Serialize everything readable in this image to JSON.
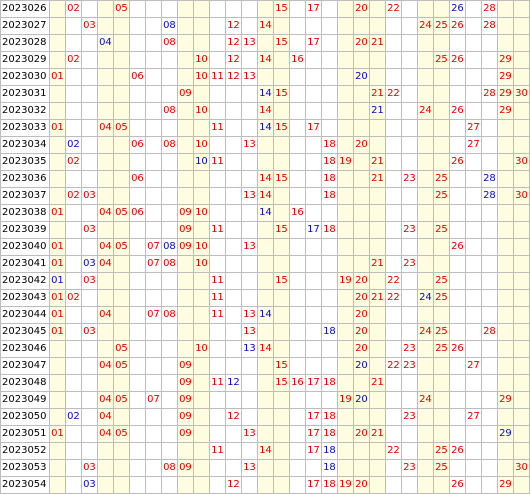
{
  "colors": {
    "red": "#e00000",
    "blue": "#0a0ab4",
    "shade": "#fefde0",
    "border": "#bdbdbd"
  },
  "columns": [
    1,
    2,
    3,
    4,
    5,
    6,
    7,
    8,
    9,
    10,
    11,
    12,
    13,
    14,
    15,
    16,
    17,
    18,
    19,
    20,
    21,
    22,
    23,
    24,
    25,
    26,
    27,
    28,
    29,
    30
  ],
  "shaded_columns": [
    1,
    4,
    5,
    9,
    10,
    14,
    15,
    19,
    20,
    21,
    24,
    25,
    29,
    30
  ],
  "rows": [
    {
      "issue": "2023026",
      "red": [
        2,
        5,
        15,
        17,
        20,
        22,
        28
      ],
      "blue": [
        26
      ]
    },
    {
      "issue": "2023027",
      "red": [
        3,
        12,
        14,
        24,
        25,
        26,
        28
      ],
      "blue": [
        8
      ]
    },
    {
      "issue": "2023028",
      "red": [
        8,
        12,
        13,
        15,
        17,
        20,
        21
      ],
      "blue": [
        4
      ]
    },
    {
      "issue": "2023029",
      "red": [
        2,
        10,
        12,
        14,
        16,
        25,
        26,
        29
      ],
      "blue": []
    },
    {
      "issue": "2023030",
      "red": [
        1,
        6,
        10,
        11,
        12,
        13,
        29
      ],
      "blue": [
        20
      ]
    },
    {
      "issue": "2023031",
      "red": [
        9,
        15,
        21,
        22,
        28,
        29,
        30
      ],
      "blue": [
        14
      ]
    },
    {
      "issue": "2023032",
      "red": [
        8,
        10,
        14,
        24,
        26,
        29
      ],
      "blue": [
        21
      ]
    },
    {
      "issue": "2023033",
      "red": [
        1,
        4,
        5,
        11,
        15,
        17,
        27
      ],
      "blue": [
        14
      ]
    },
    {
      "issue": "2023034",
      "red": [
        6,
        8,
        10,
        13,
        18,
        20,
        27
      ],
      "blue": [
        2
      ]
    },
    {
      "issue": "2023035",
      "red": [
        2,
        11,
        18,
        19,
        21,
        26,
        30
      ],
      "blue": [
        10
      ]
    },
    {
      "issue": "2023036",
      "red": [
        6,
        14,
        15,
        18,
        21,
        23,
        25
      ],
      "blue": [
        28
      ]
    },
    {
      "issue": "2023037",
      "red": [
        2,
        3,
        13,
        14,
        18,
        25,
        30
      ],
      "blue": [
        28
      ]
    },
    {
      "issue": "2023038",
      "red": [
        1,
        4,
        5,
        6,
        9,
        10,
        16
      ],
      "blue": [
        14
      ]
    },
    {
      "issue": "2023039",
      "red": [
        3,
        9,
        11,
        15,
        18,
        23,
        25
      ],
      "blue": [
        17
      ]
    },
    {
      "issue": "2023040",
      "red": [
        1,
        4,
        5,
        7,
        9,
        10,
        13,
        26
      ],
      "blue": [
        8
      ]
    },
    {
      "issue": "2023041",
      "red": [
        1,
        4,
        7,
        8,
        10,
        21,
        23
      ],
      "blue": [
        3
      ]
    },
    {
      "issue": "2023042",
      "red": [
        3,
        11,
        15,
        19,
        20,
        22,
        25
      ],
      "blue": [
        1
      ]
    },
    {
      "issue": "2023043",
      "red": [
        1,
        2,
        11,
        20,
        21,
        22,
        25
      ],
      "blue": [
        24
      ]
    },
    {
      "issue": "2023044",
      "red": [
        1,
        4,
        7,
        8,
        11,
        13,
        20
      ],
      "blue": [
        14
      ]
    },
    {
      "issue": "2023045",
      "red": [
        1,
        3,
        13,
        20,
        24,
        25,
        28
      ],
      "blue": [
        18
      ]
    },
    {
      "issue": "2023046",
      "red": [
        5,
        10,
        14,
        20,
        23,
        25,
        26
      ],
      "blue": [
        13
      ]
    },
    {
      "issue": "2023047",
      "red": [
        4,
        5,
        9,
        15,
        22,
        23,
        27
      ],
      "blue": [
        20
      ]
    },
    {
      "issue": "2023048",
      "red": [
        9,
        11,
        15,
        16,
        17,
        18,
        21
      ],
      "blue": [
        12
      ]
    },
    {
      "issue": "2023049",
      "red": [
        4,
        5,
        7,
        9,
        19,
        24,
        29
      ],
      "blue": [
        20
      ]
    },
    {
      "issue": "2023050",
      "red": [
        4,
        9,
        12,
        17,
        18,
        23,
        27
      ],
      "blue": [
        2
      ]
    },
    {
      "issue": "2023051",
      "red": [
        1,
        4,
        5,
        9,
        13,
        17,
        18,
        20,
        21
      ],
      "blue": [
        29
      ]
    },
    {
      "issue": "2023052",
      "red": [
        11,
        14,
        17,
        22,
        25,
        26
      ],
      "blue": [
        18
      ]
    },
    {
      "issue": "2023053",
      "red": [
        3,
        8,
        9,
        13,
        23,
        25,
        30
      ],
      "blue": [
        18
      ]
    },
    {
      "issue": "2023054",
      "red": [
        12,
        17,
        18,
        19,
        20,
        26,
        29
      ],
      "blue": [
        3
      ]
    }
  ]
}
